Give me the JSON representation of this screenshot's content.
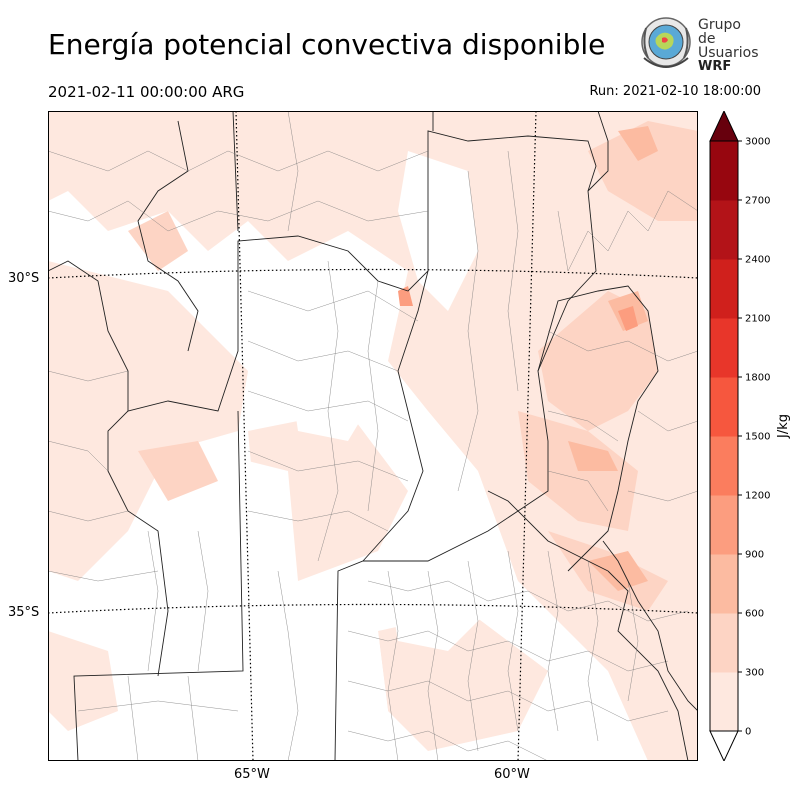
{
  "header": {
    "title": "Energía potencial convectiva disponible",
    "valid_time": "2021-02-11 00:00:00 ARG",
    "run_time": "Run: 2021-02-10 18:00:00"
  },
  "logo": {
    "line1": "Grupo de",
    "line2": "Usuarios",
    "line3": "WRF"
  },
  "map": {
    "lat_labels": [
      "30°S",
      "35°S"
    ],
    "lon_labels": [
      "65°W",
      "60°W"
    ]
  },
  "colorbar": {
    "label": "J/kg",
    "ticks": [
      "3000",
      "2700",
      "2400",
      "2100",
      "1800",
      "1500",
      "1200",
      "900",
      "600",
      "300",
      "0"
    ],
    "colors": [
      "#fee8df",
      "#fdd4c4",
      "#fcbba1",
      "#fc9d7f",
      "#fb7d5e",
      "#f6573e",
      "#e8362a",
      "#d0201c",
      "#b31318",
      "#97060f",
      "#6c010d"
    ],
    "min_color": "#ffffff",
    "max_color": "#67000d"
  }
}
